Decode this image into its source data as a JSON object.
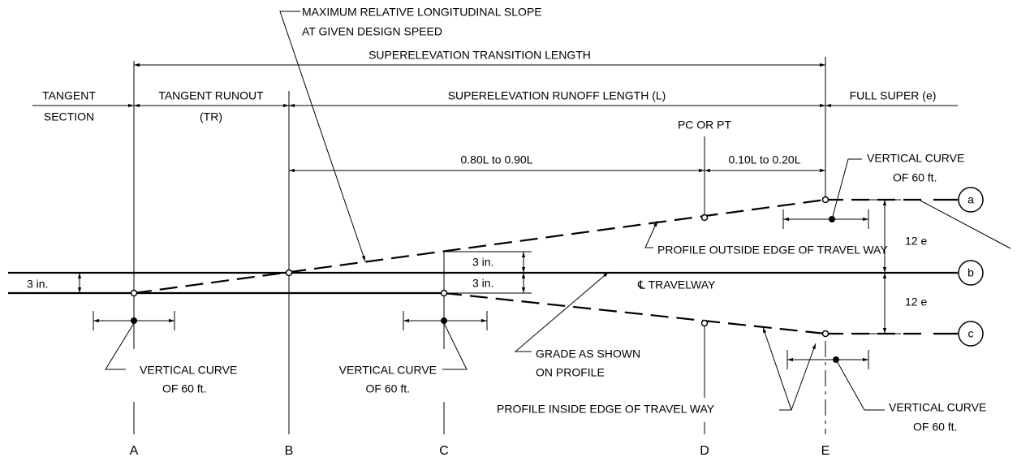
{
  "slope_note": {
    "line1": "MAXIMUM RELATIVE LONGITUDINAL SLOPE",
    "line2": "AT GIVEN DESIGN SPEED"
  },
  "transition_length": "SUPERELEVATION TRANSITION LENGTH",
  "tangent_section": {
    "line1": "TANGENT",
    "line2": "SECTION"
  },
  "tangent_runout": {
    "line1": "TANGENT RUNOUT",
    "line2": "(TR)"
  },
  "runoff_length": "SUPERELEVATION RUNOFF LENGTH (L)",
  "full_super": "FULL SUPER (e)",
  "pc_pt": "PC OR PT",
  "part_80_90": "0.80L to 0.90L",
  "part_10_20": "0.10L to 0.20L",
  "vc_top": {
    "line1": "VERTICAL CURVE",
    "line2": "OF 60 ft."
  },
  "vc_a": {
    "line1": "VERTICAL CURVE",
    "line2": "OF 60 ft."
  },
  "vc_c": {
    "line1": "VERTICAL CURVE",
    "line2": "OF 60 ft."
  },
  "vc_e": {
    "line1": "VERTICAL CURVE",
    "line2": "OF 60 ft."
  },
  "e_upper": "12  e",
  "e_lower": "12  e",
  "outside_edge": "PROFILE OUTSIDE EDGE OF TRAVEL WAY",
  "inside_edge": "PROFILE INSIDE EDGE OF TRAVEL WAY",
  "in_left": "3 in.",
  "in_upper": "3 in.",
  "in_lower": "3 in.",
  "centerline": "℄ TRAVELWAY",
  "grade": {
    "line1": "GRADE AS SHOWN",
    "line2": "ON PROFILE"
  },
  "profiles": [
    "a",
    "b",
    "c"
  ],
  "stations": [
    "A",
    "B",
    "C",
    "D",
    "E"
  ]
}
